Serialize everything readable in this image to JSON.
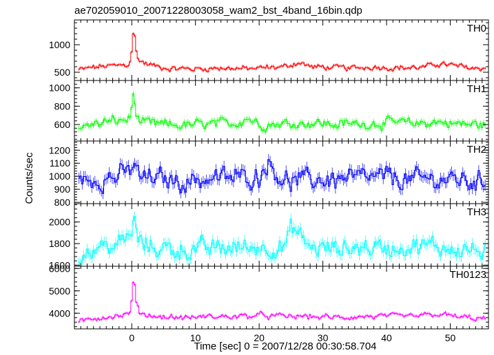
{
  "chart_data": {
    "type": "line",
    "title": "ae702059010_20071228003058_wam2_bst_4band_16bin.qdp",
    "xlabel": "Time [sec] 0 = 2007/12/28 00:30:58.704",
    "ylabel": "Counts/sec",
    "xlim": [
      -9,
      56
    ],
    "x_ticks": [
      0,
      10,
      20,
      30,
      40,
      50
    ],
    "grid": false,
    "panels": [
      {
        "name": "TH0",
        "color": "#ff0000",
        "ylim": [
          350,
          1450
        ],
        "y_ticks": [
          500,
          1000
        ],
        "baseline": 580,
        "noise": 45,
        "x": [
          -8,
          -6,
          -4,
          -2,
          -0.5,
          0.0,
          0.2,
          0.5,
          1,
          2,
          4,
          6,
          10,
          14,
          18,
          22,
          24,
          26,
          28,
          30,
          34,
          38,
          42,
          46,
          48,
          52,
          55
        ],
        "y": [
          550,
          590,
          610,
          620,
          640,
          1000,
          1380,
          900,
          720,
          660,
          600,
          570,
          560,
          580,
          560,
          590,
          600,
          680,
          600,
          590,
          570,
          600,
          580,
          590,
          660,
          590,
          570
        ]
      },
      {
        "name": "TH1",
        "color": "#00ff00",
        "ylim": [
          420,
          1080
        ],
        "y_ticks": [
          600,
          800,
          1000
        ],
        "baseline": 600,
        "noise": 50,
        "x": [
          -8,
          -6,
          -4,
          -2,
          -0.5,
          0.0,
          0.2,
          0.5,
          1,
          2,
          4,
          8,
          12,
          16,
          18,
          20,
          24,
          28,
          32,
          36,
          40,
          44,
          48,
          52,
          55
        ],
        "y": [
          580,
          600,
          630,
          640,
          660,
          800,
          1040,
          700,
          640,
          610,
          600,
          590,
          600,
          610,
          680,
          600,
          610,
          620,
          600,
          610,
          620,
          610,
          630,
          600,
          600
        ]
      },
      {
        "name": "TH2",
        "color": "#0000ff",
        "ylim": [
          790,
          1270
        ],
        "y_ticks": [
          800,
          900,
          1000,
          1100,
          1200
        ],
        "baseline": 975,
        "noise": 70,
        "x": [
          -8,
          -6,
          -4,
          -2,
          0,
          0.2,
          1,
          4,
          8,
          12,
          16,
          20,
          21,
          24,
          28,
          32,
          36,
          40,
          44,
          48,
          52,
          55
        ],
        "y": [
          950,
          980,
          990,
          1000,
          1050,
          1120,
          990,
          980,
          960,
          980,
          990,
          1000,
          1120,
          960,
          970,
          980,
          980,
          990,
          970,
          980,
          970,
          950
        ]
      },
      {
        "name": "TH3",
        "color": "#00ffff",
        "ylim": [
          1590,
          2170
        ],
        "y_ticks": [
          1600,
          1800,
          2000
        ],
        "baseline": 1750,
        "noise": 80,
        "x": [
          -8,
          -6,
          -4,
          -2,
          0,
          0.2,
          1,
          4,
          8,
          12,
          16,
          20,
          24,
          25,
          28,
          32,
          36,
          40,
          44,
          48,
          52,
          55
        ],
        "y": [
          1700,
          1750,
          1780,
          1790,
          1900,
          2050,
          1800,
          1760,
          1740,
          1750,
          1760,
          1770,
          1770,
          1950,
          1760,
          1750,
          1770,
          1760,
          1780,
          1770,
          1750,
          1720
        ]
      },
      {
        "name": "TH0123",
        "color": "#ff00ff",
        "ylim": [
          3300,
          6100
        ],
        "y_ticks": [
          4000,
          5000,
          6000
        ],
        "baseline": 3800,
        "noise": 110,
        "x": [
          -8,
          -6,
          -4,
          -2,
          -0.5,
          0.0,
          0.2,
          0.5,
          1,
          2,
          4,
          8,
          12,
          16,
          20,
          24,
          28,
          32,
          36,
          40,
          44,
          48,
          52,
          55
        ],
        "y": [
          3600,
          3800,
          3850,
          3900,
          3950,
          4800,
          5900,
          4500,
          4050,
          3950,
          3850,
          3800,
          3850,
          3850,
          3900,
          3850,
          3850,
          3800,
          3850,
          3850,
          3850,
          3950,
          3800,
          3750
        ]
      }
    ]
  }
}
